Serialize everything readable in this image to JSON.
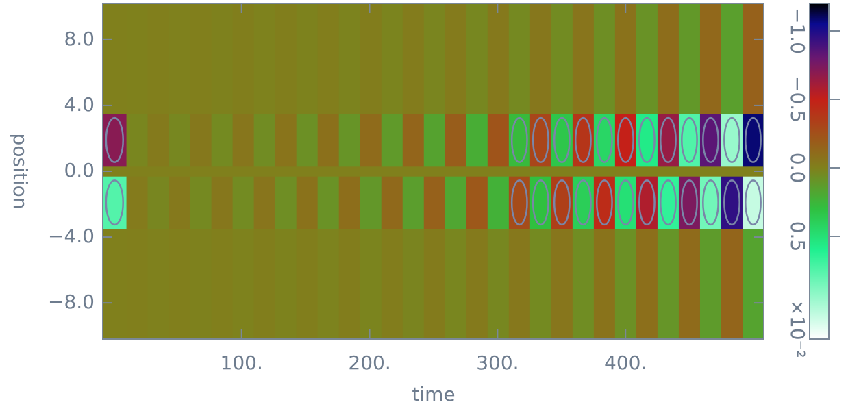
{
  "chart_data": {
    "type": "heatmap",
    "xlabel": "time",
    "ylabel": "position",
    "xlim": [
      -8.5,
      508
    ],
    "ylim": [
      -10.2,
      10.2
    ],
    "xticks": [
      {
        "value": 100,
        "label": "100."
      },
      {
        "value": 200,
        "label": "200."
      },
      {
        "value": 300,
        "label": "300."
      },
      {
        "value": 400,
        "label": "400."
      }
    ],
    "yticks": [
      {
        "value": 8,
        "label": "8.0"
      },
      {
        "value": 4,
        "label": "4.0"
      },
      {
        "value": 0,
        "label": "0.0"
      },
      {
        "value": -4,
        "label": "−4.0"
      },
      {
        "value": -8,
        "label": "−8.0"
      }
    ],
    "x_edges": [
      -8.5,
      10,
      26.6,
      43.2,
      59.8,
      76.4,
      93,
      109.6,
      126.2,
      142.8,
      159.4,
      176,
      192.6,
      209.2,
      225.8,
      242.4,
      259,
      275.6,
      292.2,
      308.8,
      325.4,
      342,
      358.6,
      375.2,
      391.8,
      408.4,
      425,
      441.6,
      458.2,
      474.8,
      491.4,
      508
    ],
    "y_edges": [
      -10.2,
      -3.5,
      -0.3,
      0.3,
      3.5,
      10.2
    ],
    "z": [
      [
        0,
        -0.004,
        0.005,
        -0.005,
        0.006,
        -0.007,
        0.008,
        -0.009,
        0.01,
        -0.011,
        0.013,
        -0.014,
        0.017,
        -0.018,
        0.021,
        -0.024,
        0.027,
        -0.032,
        0.035,
        -0.041,
        0.045,
        -0.051,
        0.059,
        -0.066,
        0.075,
        -0.086,
        0.098,
        -0.111,
        0.126,
        -0.143,
        0.162
      ],
      [
        0.75,
        -0.027,
        0.03,
        -0.035,
        0.04,
        -0.045,
        0.05,
        -0.057,
        0.065,
        -0.074,
        0.084,
        -0.095,
        0.11,
        -0.12,
        0.14,
        -0.16,
        0.18,
        -0.21,
        0.23,
        -0.27,
        0.3,
        -0.34,
        0.39,
        -0.44,
        0.5,
        -0.57,
        0.65,
        -0.74,
        0.84,
        -0.95,
        1.08
      ],
      [
        0,
        0,
        0,
        0,
        0,
        0,
        0,
        0,
        0,
        0,
        0,
        0,
        0,
        0,
        0,
        0,
        0,
        0,
        0,
        0,
        0,
        0,
        0,
        0,
        0,
        0,
        0,
        0,
        0,
        0,
        0
      ],
      [
        -0.7,
        0.027,
        -0.03,
        0.035,
        -0.04,
        0.045,
        -0.05,
        0.057,
        -0.065,
        0.074,
        -0.084,
        0.095,
        -0.11,
        0.12,
        -0.14,
        0.16,
        -0.18,
        0.21,
        -0.23,
        0.27,
        -0.3,
        0.34,
        -0.39,
        0.44,
        -0.5,
        0.57,
        -0.65,
        0.74,
        -0.84,
        0.95,
        -1.08
      ],
      [
        0,
        0.004,
        -0.005,
        0.005,
        -0.006,
        0.007,
        -0.008,
        0.009,
        -0.01,
        0.011,
        -0.013,
        0.014,
        -0.017,
        0.018,
        -0.021,
        0.024,
        -0.027,
        0.032,
        -0.035,
        0.041,
        -0.045,
        0.051,
        -0.059,
        0.066,
        -0.075,
        0.086,
        -0.098,
        0.111,
        -0.126,
        0.143,
        -0.162
      ]
    ],
    "contour_level": 0.25,
    "zlim": [
      -1.2,
      1.25
    ],
    "zticks": [
      {
        "value": -1,
        "label": "−1.0"
      },
      {
        "value": -0.5,
        "label": "−0.5"
      },
      {
        "value": 0,
        "label": "0.0"
      },
      {
        "value": 0.5,
        "label": "0.5"
      }
    ],
    "colorbar_label": "×10⁻²",
    "colormap": [
      {
        "value": -1.2,
        "color": "#000000"
      },
      {
        "value": -1.05,
        "color": "#0a0a90"
      },
      {
        "value": -0.8,
        "color": "#6a1870"
      },
      {
        "value": -0.5,
        "color": "#c42018"
      },
      {
        "value": 0,
        "color": "#80801c"
      },
      {
        "value": 0.3,
        "color": "#30c040"
      },
      {
        "value": 0.6,
        "color": "#20f090"
      },
      {
        "value": 1.25,
        "color": "#ffffff"
      }
    ]
  }
}
